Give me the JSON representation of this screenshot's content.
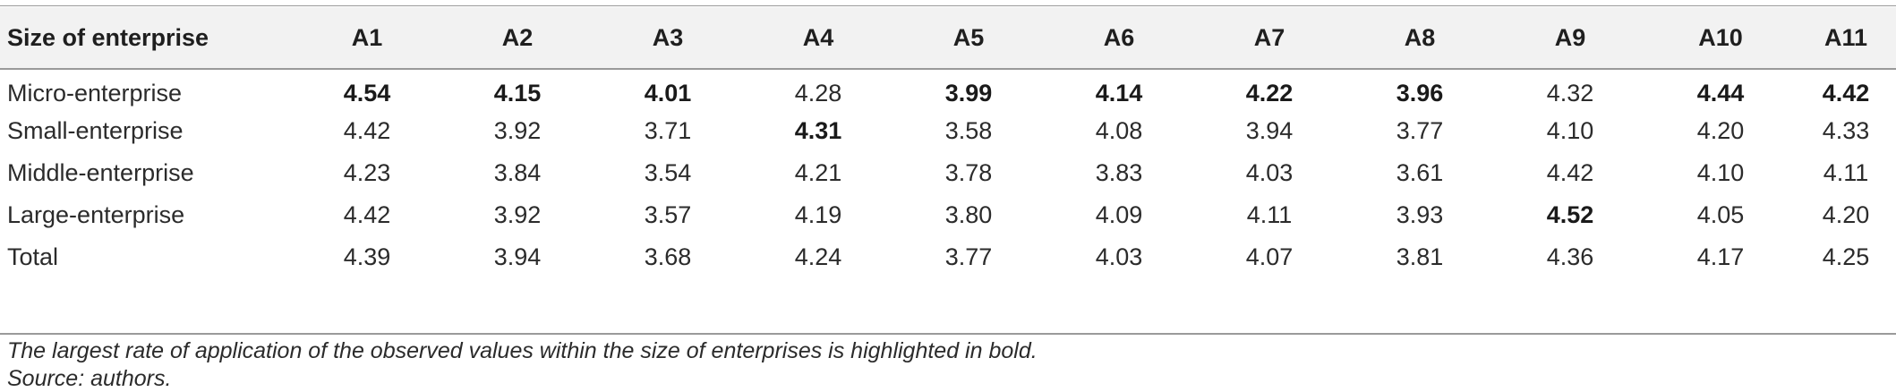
{
  "table": {
    "header": [
      "Size of enterprise",
      "A1",
      "A2",
      "A3",
      "A4",
      "A5",
      "A6",
      "A7",
      "A8",
      "A9",
      "A10",
      "A11"
    ],
    "rows": [
      {
        "label": "Micro-enterprise",
        "values": [
          "4.54",
          "4.15",
          "4.01",
          "4.28",
          "3.99",
          "4.14",
          "4.22",
          "3.96",
          "4.32",
          "4.44",
          "4.42"
        ],
        "bold": [
          true,
          true,
          true,
          false,
          true,
          true,
          true,
          true,
          false,
          true,
          true
        ]
      },
      {
        "label": "Small-enterprise",
        "values": [
          "4.42",
          "3.92",
          "3.71",
          "4.31",
          "3.58",
          "4.08",
          "3.94",
          "3.77",
          "4.10",
          "4.20",
          "4.33"
        ],
        "bold": [
          false,
          false,
          false,
          true,
          false,
          false,
          false,
          false,
          false,
          false,
          false
        ]
      },
      {
        "label": "Middle-enterprise",
        "values": [
          "4.23",
          "3.84",
          "3.54",
          "4.21",
          "3.78",
          "3.83",
          "4.03",
          "3.61",
          "4.42",
          "4.10",
          "4.11"
        ],
        "bold": [
          false,
          false,
          false,
          false,
          false,
          false,
          false,
          false,
          false,
          false,
          false
        ]
      },
      {
        "label": "Large-enterprise",
        "values": [
          "4.42",
          "3.92",
          "3.57",
          "4.19",
          "3.80",
          "4.09",
          "4.11",
          "3.93",
          "4.52",
          "4.05",
          "4.20"
        ],
        "bold": [
          false,
          false,
          false,
          false,
          false,
          false,
          false,
          false,
          true,
          false,
          false
        ]
      },
      {
        "label": "Total",
        "values": [
          "4.39",
          "3.94",
          "3.68",
          "4.24",
          "3.77",
          "4.03",
          "4.07",
          "3.81",
          "4.36",
          "4.17",
          "4.25"
        ],
        "bold": [
          false,
          false,
          false,
          false,
          false,
          false,
          false,
          false,
          false,
          false,
          false
        ]
      }
    ]
  },
  "footnotes": {
    "note": "The largest rate of application of the observed values within the size of enterprises is highlighted in bold.",
    "source": "Source: authors."
  }
}
